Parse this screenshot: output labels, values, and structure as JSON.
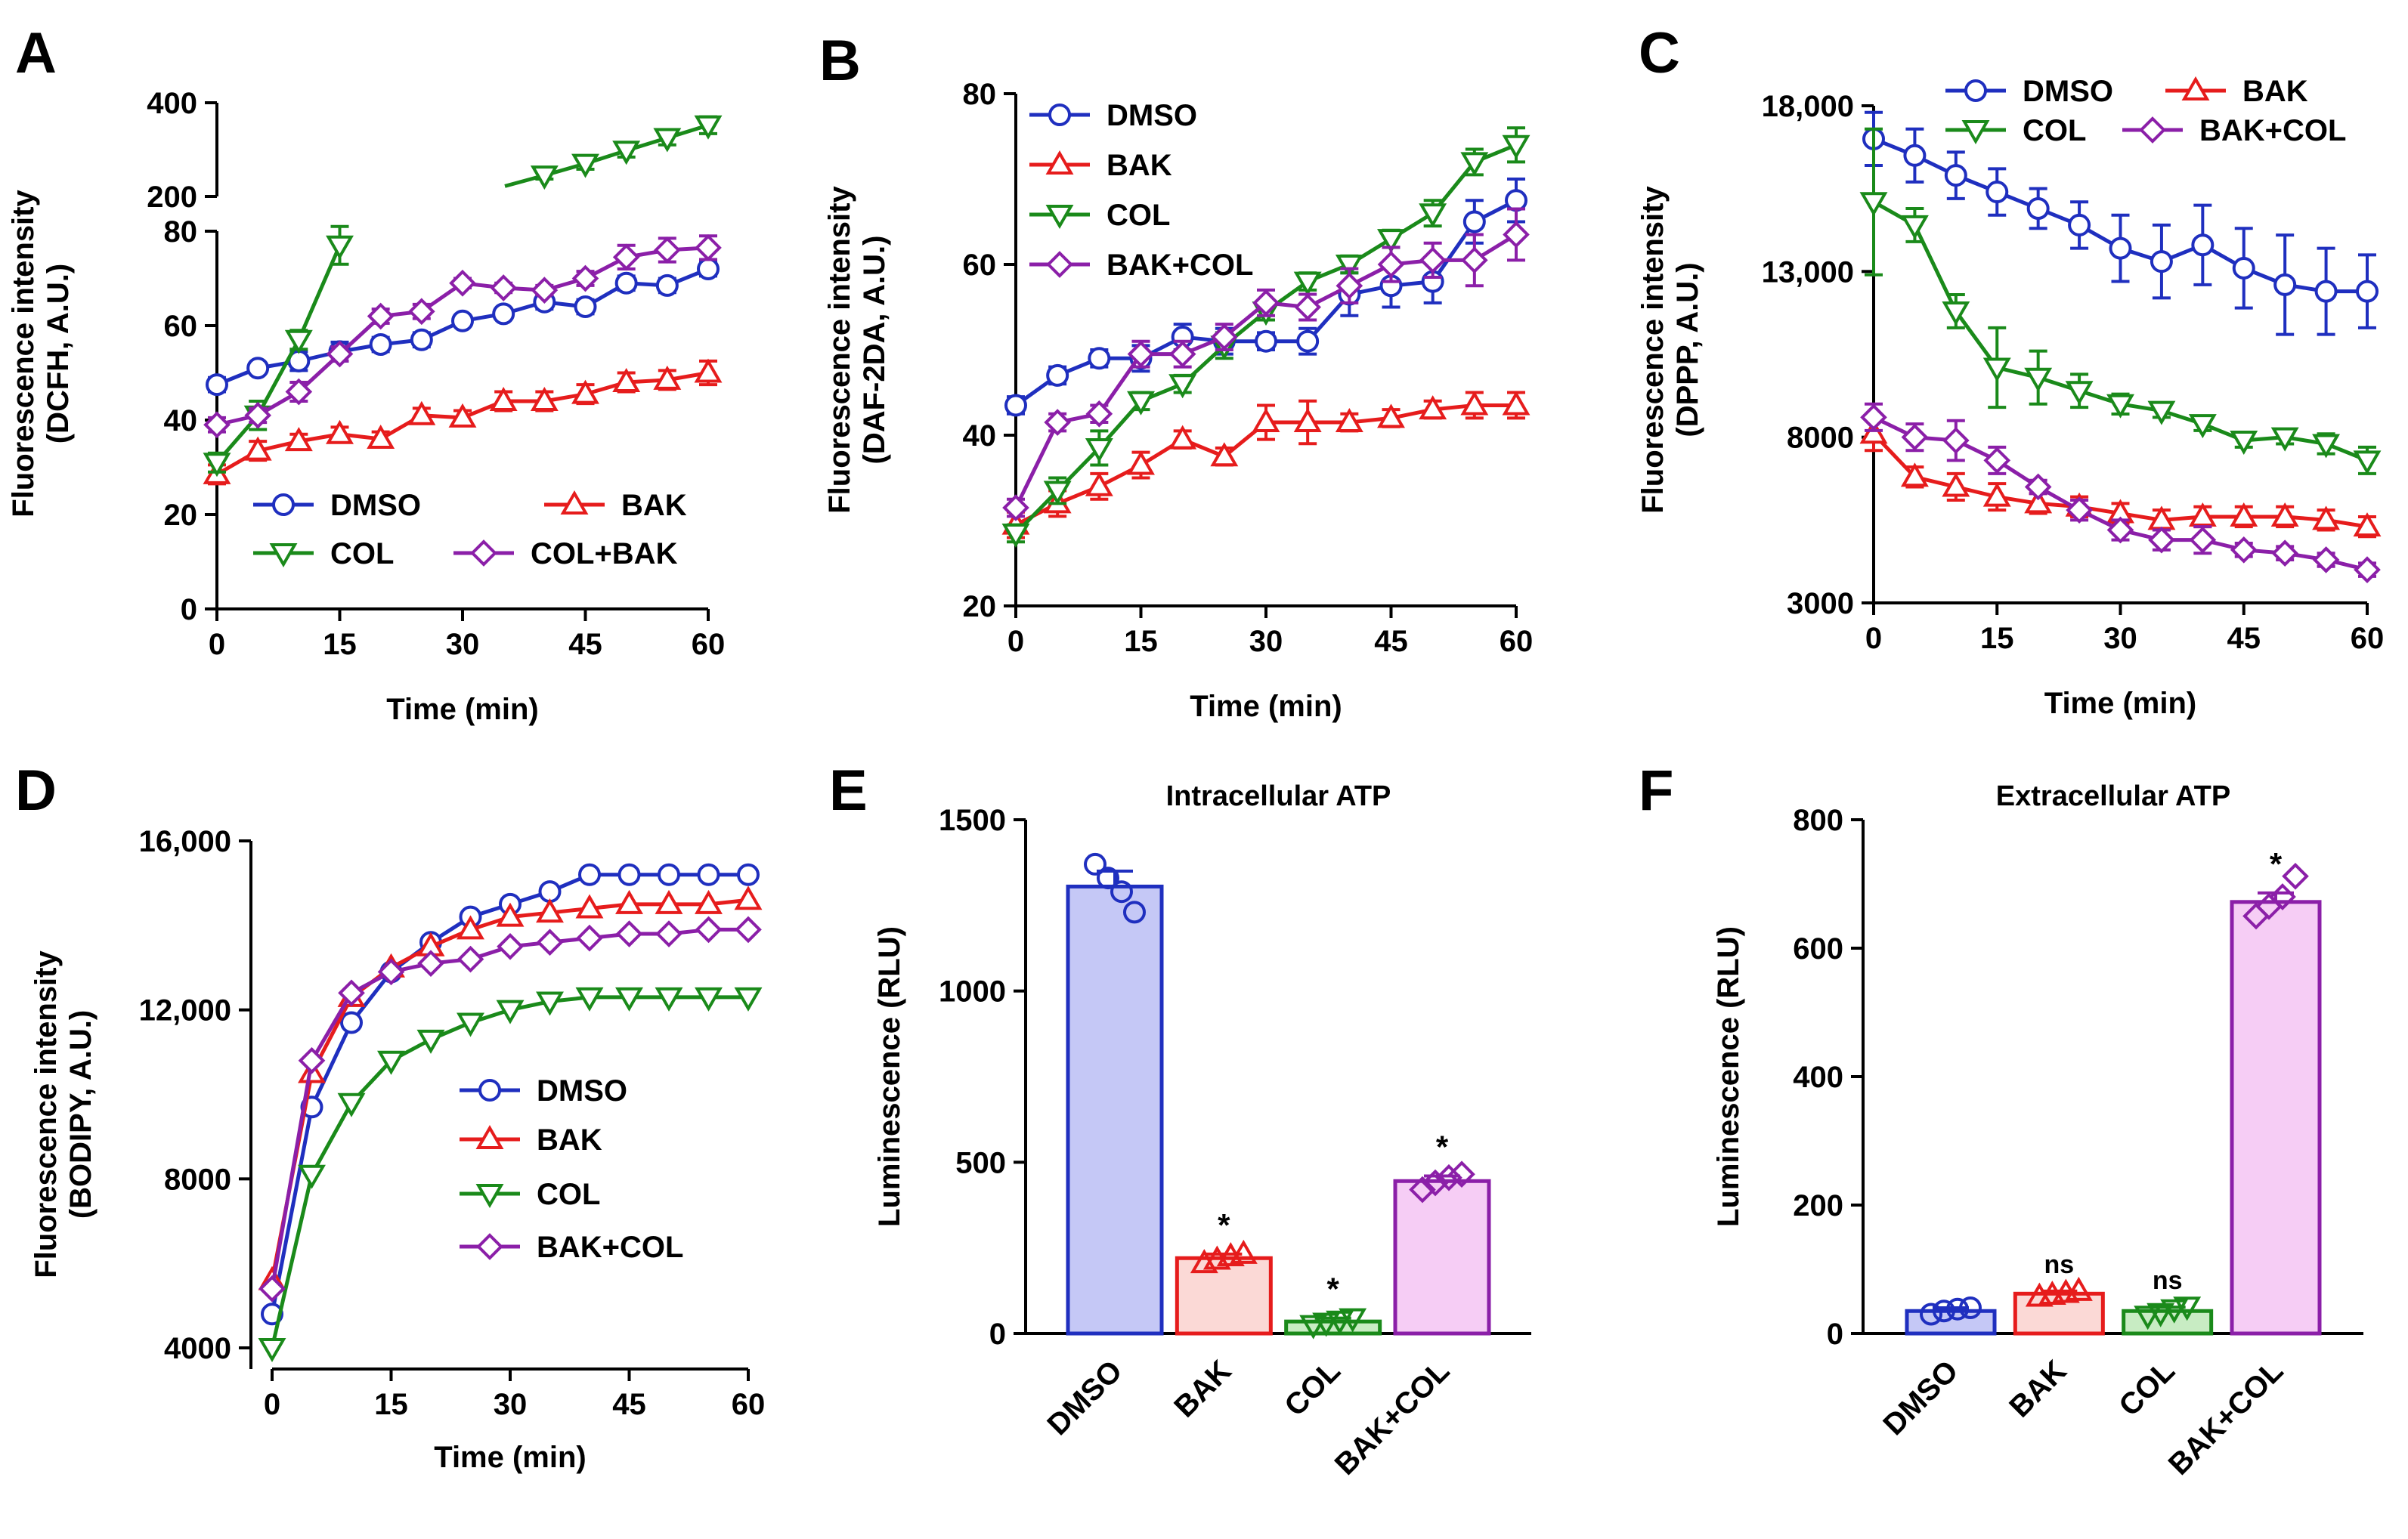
{
  "colors": {
    "DMSO": "#1f2fbf",
    "BAK": "#e61c1c",
    "COL": "#1a8a1a",
    "MIX": "#8b1fa8",
    "DMSO_fill": "#c5c8f6",
    "BAK_fill": "#fbd9d6",
    "COL_fill": "#c8ecc3",
    "MIX_fill": "#f6cdf5"
  },
  "chart_data": [
    {
      "id": "A",
      "type": "line",
      "letter": "A",
      "xlabel": "Time (min)",
      "ylabel1": "Fluorescence intensity",
      "ylabel2": "(DCFH, A.U.)",
      "xlim": [
        0,
        60
      ],
      "xticks": [
        "0",
        "15",
        "30",
        "45",
        "60"
      ],
      "ylim": [
        0,
        80
      ],
      "yticks": [
        "0",
        "20",
        "40",
        "60",
        "80"
      ],
      "upper_ylim": [
        200,
        400
      ],
      "upper_yticks": [
        "200",
        "400"
      ],
      "series": [
        {
          "name": "DMSO",
          "key": "DMSO",
          "marker": "circle",
          "x": [
            0,
            5,
            10,
            15,
            20,
            25,
            30,
            35,
            40,
            45,
            50,
            55,
            60
          ],
          "values": [
            47.5,
            51,
            52.5,
            54.5,
            56,
            57,
            61,
            62.5,
            65,
            64,
            69,
            68.5,
            72
          ],
          "err": [
            1.5,
            1,
            2,
            2,
            1.5,
            1.5,
            1,
            1,
            1.5,
            1.5,
            1.5,
            1.5,
            1.5
          ]
        },
        {
          "name": "BAK",
          "key": "BAK",
          "marker": "tri-up",
          "x": [
            0,
            5,
            10,
            15,
            20,
            25,
            30,
            35,
            40,
            45,
            50,
            55,
            60
          ],
          "values": [
            28.5,
            33.5,
            35.5,
            37,
            36,
            41,
            40.5,
            44,
            44,
            45.5,
            48,
            48.5,
            50
          ],
          "err": [
            2,
            2,
            1.5,
            1.5,
            1.5,
            1.5,
            1.5,
            2,
            2,
            2,
            2,
            2,
            2.5
          ]
        },
        {
          "name": "COL",
          "key": "COL",
          "marker": "tri-down",
          "x": [
            0,
            5,
            10,
            15
          ],
          "values": [
            31,
            41,
            57,
            77
          ],
          "err": [
            2,
            3,
            2,
            4
          ]
        },
        {
          "name": "COL+BAK",
          "key": "MIX",
          "marker": "diamond",
          "x": [
            0,
            5,
            10,
            15,
            20,
            25,
            30,
            35,
            40,
            45,
            50,
            55,
            60
          ],
          "values": [
            39,
            41,
            46,
            54,
            62,
            63,
            69,
            68,
            67.5,
            70,
            74.5,
            76,
            76.5
          ],
          "err": [
            1.5,
            1.5,
            2,
            1.5,
            1.5,
            1.5,
            1,
            1,
            1,
            1.5,
            2.5,
            2.5,
            2.5
          ]
        }
      ],
      "upper_series": {
        "key": "COL",
        "x": [
          40,
          45,
          50,
          55,
          60
        ],
        "values": [
          245,
          270,
          298,
          325,
          352
        ],
        "err": [
          8,
          12,
          14,
          15,
          18
        ]
      }
    },
    {
      "id": "B",
      "type": "line",
      "letter": "B",
      "xlabel": "Time (min)",
      "ylabel1": "Fluorescence intensity",
      "ylabel2": "(DAF-2DA, A.U.)",
      "xlim": [
        0,
        60
      ],
      "xticks": [
        "0",
        "15",
        "30",
        "45",
        "60"
      ],
      "ylim": [
        20,
        80
      ],
      "yticks": [
        "20",
        "40",
        "60",
        "80"
      ],
      "series": [
        {
          "name": "DMSO",
          "key": "DMSO",
          "marker": "circle",
          "x": [
            0,
            5,
            10,
            15,
            20,
            25,
            30,
            35,
            40,
            45,
            50,
            55,
            60
          ],
          "values": [
            43.5,
            47,
            49,
            49,
            51.5,
            51,
            51,
            51,
            56.5,
            57.5,
            58,
            65,
            67.5
          ],
          "err": [
            1,
            1,
            1,
            1.5,
            1.5,
            1.5,
            1,
            1.5,
            2.5,
            2.5,
            2.5,
            2.5,
            2.5
          ]
        },
        {
          "name": "BAK",
          "key": "BAK",
          "marker": "tri-up",
          "x": [
            0,
            5,
            10,
            15,
            20,
            25,
            30,
            35,
            40,
            45,
            50,
            55,
            60
          ],
          "values": [
            29.5,
            32,
            34,
            36.5,
            39.5,
            37.5,
            41.5,
            41.5,
            41.5,
            42,
            43,
            43.5,
            43.5
          ],
          "err": [
            1.5,
            1.5,
            1.5,
            1.5,
            1,
            1,
            2,
            2.5,
            1,
            1,
            1,
            1.5,
            1.5
          ]
        },
        {
          "name": "COL",
          "key": "COL",
          "marker": "tri-down",
          "x": [
            0,
            5,
            10,
            15,
            20,
            25,
            30,
            35,
            40,
            45,
            50,
            55,
            60
          ],
          "values": [
            28.5,
            33.5,
            38.5,
            44,
            46,
            50.5,
            54.5,
            58,
            60,
            63,
            66,
            72,
            74
          ],
          "err": [
            1,
            1.5,
            2,
            1,
            1,
            1.5,
            1,
            1,
            1,
            1,
            1.5,
            1.5,
            2
          ]
        },
        {
          "name": "BAK+COL",
          "key": "MIX",
          "marker": "diamond",
          "x": [
            0,
            5,
            10,
            15,
            20,
            25,
            30,
            35,
            40,
            45,
            50,
            55,
            60
          ],
          "values": [
            31.5,
            41.5,
            42.5,
            49.5,
            49.5,
            51.5,
            55.5,
            55,
            57.5,
            60,
            60.5,
            60.5,
            63.5
          ],
          "err": [
            1,
            1,
            1,
            1.5,
            1.5,
            1.5,
            1.5,
            1.5,
            2,
            2,
            2,
            3,
            3
          ]
        }
      ]
    },
    {
      "id": "C",
      "type": "line",
      "letter": "C",
      "xlabel": "Time (min)",
      "ylabel1": "Fluorescence intensity",
      "ylabel2": "(DPPP, A.U.)",
      "xlim": [
        0,
        60
      ],
      "xticks": [
        "0",
        "15",
        "30",
        "45",
        "60"
      ],
      "ylim": [
        3000,
        18000
      ],
      "yticks": [
        "3000",
        "8000",
        "13,000",
        "18,000"
      ],
      "ytick_values": [
        3000,
        8000,
        13000,
        18000
      ],
      "series": [
        {
          "name": "DMSO",
          "key": "DMSO",
          "marker": "circle",
          "x": [
            0,
            5,
            10,
            15,
            20,
            25,
            30,
            35,
            40,
            45,
            50,
            55,
            60
          ],
          "values": [
            17000,
            16500,
            15900,
            15400,
            14900,
            14400,
            13700,
            13300,
            13800,
            13100,
            12600,
            12400,
            12400
          ],
          "err": [
            800,
            800,
            700,
            700,
            600,
            700,
            1000,
            1100,
            1200,
            1200,
            1500,
            1300,
            1100
          ]
        },
        {
          "name": "BAK",
          "key": "BAK",
          "marker": "tri-up",
          "x": [
            0,
            5,
            10,
            15,
            20,
            25,
            30,
            35,
            40,
            45,
            50,
            55,
            60
          ],
          "values": [
            8100,
            6800,
            6500,
            6200,
            6000,
            5900,
            5700,
            5500,
            5600,
            5600,
            5600,
            5500,
            5300
          ],
          "err": [
            500,
            300,
            400,
            400,
            300,
            300,
            300,
            300,
            300,
            300,
            300,
            300,
            300
          ]
        },
        {
          "name": "COL",
          "key": "COL",
          "marker": "tri-down",
          "x": [
            0,
            5,
            10,
            15,
            20,
            25,
            30,
            35,
            40,
            45,
            50,
            55,
            60
          ],
          "values": [
            15100,
            14400,
            11800,
            10100,
            9800,
            9400,
            9000,
            8800,
            8400,
            7900,
            8000,
            7800,
            7300
          ],
          "err": [
            2200,
            500,
            500,
            1200,
            800,
            500,
            300,
            200,
            200,
            200,
            200,
            300,
            400
          ]
        },
        {
          "name": "BAK+COL",
          "key": "MIX",
          "marker": "diamond",
          "x": [
            0,
            5,
            10,
            15,
            20,
            25,
            30,
            35,
            40,
            45,
            50,
            55,
            60
          ],
          "values": [
            8600,
            8000,
            7900,
            7300,
            6500,
            5800,
            5200,
            4900,
            4900,
            4600,
            4500,
            4300,
            4000
          ],
          "err": [
            400,
            400,
            600,
            400,
            200,
            300,
            300,
            300,
            400,
            200,
            200,
            200,
            200
          ]
        }
      ]
    },
    {
      "id": "D",
      "type": "line",
      "letter": "D",
      "xlabel": "Time (min)",
      "ylabel1": "Fluorescence intensity",
      "ylabel2": "(BODIPY, A.U.)",
      "xlim": [
        0,
        60
      ],
      "xticks": [
        "0",
        "15",
        "30",
        "45",
        "60"
      ],
      "ylim": [
        3500,
        16000
      ],
      "yticks": [
        "4000",
        "8000",
        "12,000",
        "16,000"
      ],
      "ytick_values": [
        4000,
        8000,
        12000,
        16000
      ],
      "series": [
        {
          "name": "DMSO",
          "key": "DMSO",
          "marker": "circle",
          "x": [
            0,
            5,
            10,
            15,
            20,
            25,
            30,
            35,
            40,
            45,
            50,
            55,
            60
          ],
          "values": [
            4800,
            9700,
            11700,
            12900,
            13600,
            14200,
            14500,
            14800,
            15200,
            15200,
            15200,
            15200,
            15200
          ],
          "err": [
            0,
            0,
            0,
            0,
            0,
            0,
            0,
            0,
            0,
            0,
            0,
            0,
            0
          ]
        },
        {
          "name": "BAK",
          "key": "BAK",
          "marker": "tri-up",
          "x": [
            0,
            5,
            10,
            15,
            20,
            25,
            30,
            35,
            40,
            45,
            50,
            55,
            60
          ],
          "values": [
            5600,
            10500,
            12300,
            13000,
            13500,
            13900,
            14200,
            14300,
            14400,
            14500,
            14500,
            14500,
            14600
          ],
          "err": [
            0,
            0,
            0,
            0,
            0,
            0,
            0,
            0,
            0,
            0,
            0,
            0,
            0
          ]
        },
        {
          "name": "COL",
          "key": "COL",
          "marker": "tri-down",
          "x": [
            0,
            5,
            10,
            15,
            20,
            25,
            30,
            35,
            40,
            45,
            50,
            55,
            60
          ],
          "values": [
            4000,
            8100,
            9800,
            10800,
            11300,
            11700,
            12000,
            12200,
            12300,
            12300,
            12300,
            12300,
            12300
          ],
          "err": [
            0,
            0,
            0,
            0,
            0,
            0,
            0,
            0,
            0,
            0,
            0,
            0,
            0
          ]
        },
        {
          "name": "BAK+COL",
          "key": "MIX",
          "marker": "diamond",
          "x": [
            0,
            5,
            10,
            15,
            20,
            25,
            30,
            35,
            40,
            45,
            50,
            55,
            60
          ],
          "values": [
            5400,
            10800,
            12400,
            12900,
            13100,
            13200,
            13500,
            13600,
            13700,
            13800,
            13800,
            13900,
            13900
          ],
          "err": [
            0,
            0,
            0,
            0,
            0,
            0,
            0,
            0,
            0,
            0,
            0,
            0,
            0
          ]
        }
      ]
    },
    {
      "id": "E",
      "type": "bar",
      "letter": "E",
      "title": "Intracellular ATP",
      "ylabel": "Luminescence (RLU)",
      "ylim": [
        0,
        1500
      ],
      "yticks": [
        "0",
        "500",
        "1000",
        "1500"
      ],
      "categories": [
        "DMSO",
        "BAK",
        "COL",
        "BAK+COL"
      ],
      "keys": [
        "DMSO",
        "BAK",
        "COL",
        "MIX"
      ],
      "markers": [
        "circle",
        "tri-up",
        "tri-down",
        "diamond"
      ],
      "values": [
        1305,
        220,
        35,
        445
      ],
      "err": [
        45,
        12,
        10,
        15
      ],
      "points": [
        [
          1370,
          1330,
          1290,
          1230
        ],
        [
          205,
          215,
          225,
          232
        ],
        [
          25,
          32,
          38,
          45
        ],
        [
          420,
          440,
          455,
          465
        ]
      ],
      "annotations": [
        "",
        "*",
        "*",
        "*"
      ]
    },
    {
      "id": "F",
      "type": "bar",
      "letter": "F",
      "title": "Extracellular ATP",
      "ylabel": "Luminescence (RLU)",
      "ylim": [
        0,
        800
      ],
      "yticks": [
        "0",
        "200",
        "400",
        "600",
        "800"
      ],
      "categories": [
        "DMSO",
        "BAK",
        "COL",
        "BAK+COL"
      ],
      "keys": [
        "DMSO",
        "BAK",
        "COL",
        "MIX"
      ],
      "markers": [
        "circle",
        "tri-up",
        "tri-down",
        "diamond"
      ],
      "values": [
        35,
        62,
        35,
        672
      ],
      "err": [
        5,
        4,
        6,
        14
      ],
      "points": [
        [
          30,
          35,
          38,
          40
        ],
        [
          57,
          60,
          63,
          66
        ],
        [
          28,
          32,
          38,
          42
        ],
        [
          650,
          665,
          680,
          712
        ]
      ],
      "annotations": [
        "",
        "ns",
        "ns",
        "*"
      ]
    }
  ],
  "legends": {
    "A": [
      "DMSO",
      "BAK",
      "COL",
      "COL+BAK"
    ],
    "B": [
      "DMSO",
      "BAK",
      "COL",
      "BAK+COL"
    ],
    "C": [
      "DMSO",
      "BAK",
      "COL",
      "BAK+COL"
    ],
    "D": [
      "DMSO",
      "BAK",
      "COL",
      "BAK+COL"
    ]
  }
}
